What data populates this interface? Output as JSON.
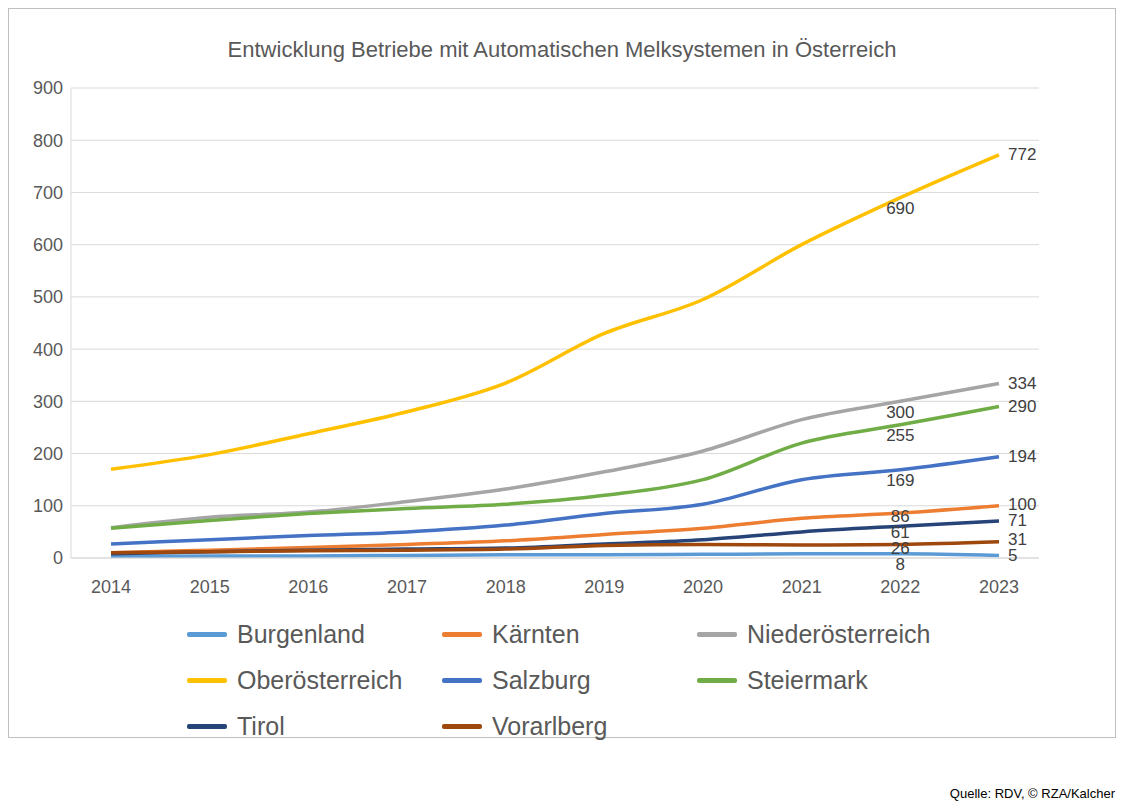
{
  "chart_data": {
    "type": "line",
    "title": "Entwicklung Betriebe mit Automatischen Melksystemen in Österreich",
    "source": "Quelle: RDV, © RZA/Kalcher",
    "categories": [
      "2014",
      "2015",
      "2016",
      "2017",
      "2018",
      "2019",
      "2020",
      "2021",
      "2022",
      "2023"
    ],
    "series": [
      {
        "name": "Burgenland",
        "color": "#5B9BD5",
        "values": [
          3,
          4,
          4,
          5,
          6,
          6,
          7,
          8,
          8,
          5
        ],
        "value_labels": [
          null,
          null,
          null,
          null,
          null,
          null,
          null,
          null,
          "8",
          "5"
        ]
      },
      {
        "name": "Kärnten",
        "color": "#ED7D31",
        "values": [
          10,
          15,
          20,
          26,
          33,
          45,
          57,
          76,
          86,
          100
        ],
        "value_labels": [
          null,
          null,
          null,
          null,
          null,
          null,
          null,
          null,
          "86",
          "100"
        ]
      },
      {
        "name": "Niederösterreich",
        "color": "#A5A5A5",
        "values": [
          58,
          78,
          88,
          108,
          132,
          165,
          205,
          265,
          300,
          334
        ],
        "value_labels": [
          null,
          null,
          null,
          null,
          null,
          null,
          null,
          null,
          "300",
          "334"
        ]
      },
      {
        "name": "Oberösterreich",
        "color": "#FFC000",
        "values": [
          170,
          198,
          238,
          280,
          335,
          430,
          495,
          600,
          690,
          772
        ],
        "value_labels": [
          null,
          null,
          null,
          null,
          null,
          null,
          null,
          null,
          "690",
          "772"
        ]
      },
      {
        "name": "Salzburg",
        "color": "#4472C4",
        "values": [
          27,
          35,
          43,
          50,
          63,
          85,
          103,
          150,
          169,
          194
        ],
        "value_labels": [
          null,
          null,
          null,
          null,
          null,
          null,
          null,
          null,
          "169",
          "194"
        ]
      },
      {
        "name": "Steiermark",
        "color": "#70AD47",
        "values": [
          57,
          72,
          85,
          95,
          103,
          120,
          150,
          220,
          255,
          290
        ],
        "value_labels": [
          null,
          null,
          null,
          null,
          null,
          null,
          null,
          null,
          "255",
          "290"
        ]
      },
      {
        "name": "Tirol",
        "color": "#264478",
        "values": [
          8,
          12,
          15,
          17,
          19,
          27,
          35,
          50,
          61,
          71
        ],
        "value_labels": [
          null,
          null,
          null,
          null,
          null,
          null,
          null,
          null,
          "61",
          "71"
        ]
      },
      {
        "name": "Vorarlberg",
        "color": "#9E480E",
        "values": [
          10,
          12,
          14,
          15,
          17,
          24,
          26,
          25,
          26,
          31
        ],
        "value_labels": [
          null,
          null,
          null,
          null,
          null,
          null,
          null,
          null,
          "26",
          "31"
        ]
      }
    ],
    "ylim": [
      0,
      900
    ],
    "yticks": [
      0,
      100,
      200,
      300,
      400,
      500,
      600,
      700,
      800,
      900
    ],
    "grid": true,
    "legend": "bottom"
  }
}
